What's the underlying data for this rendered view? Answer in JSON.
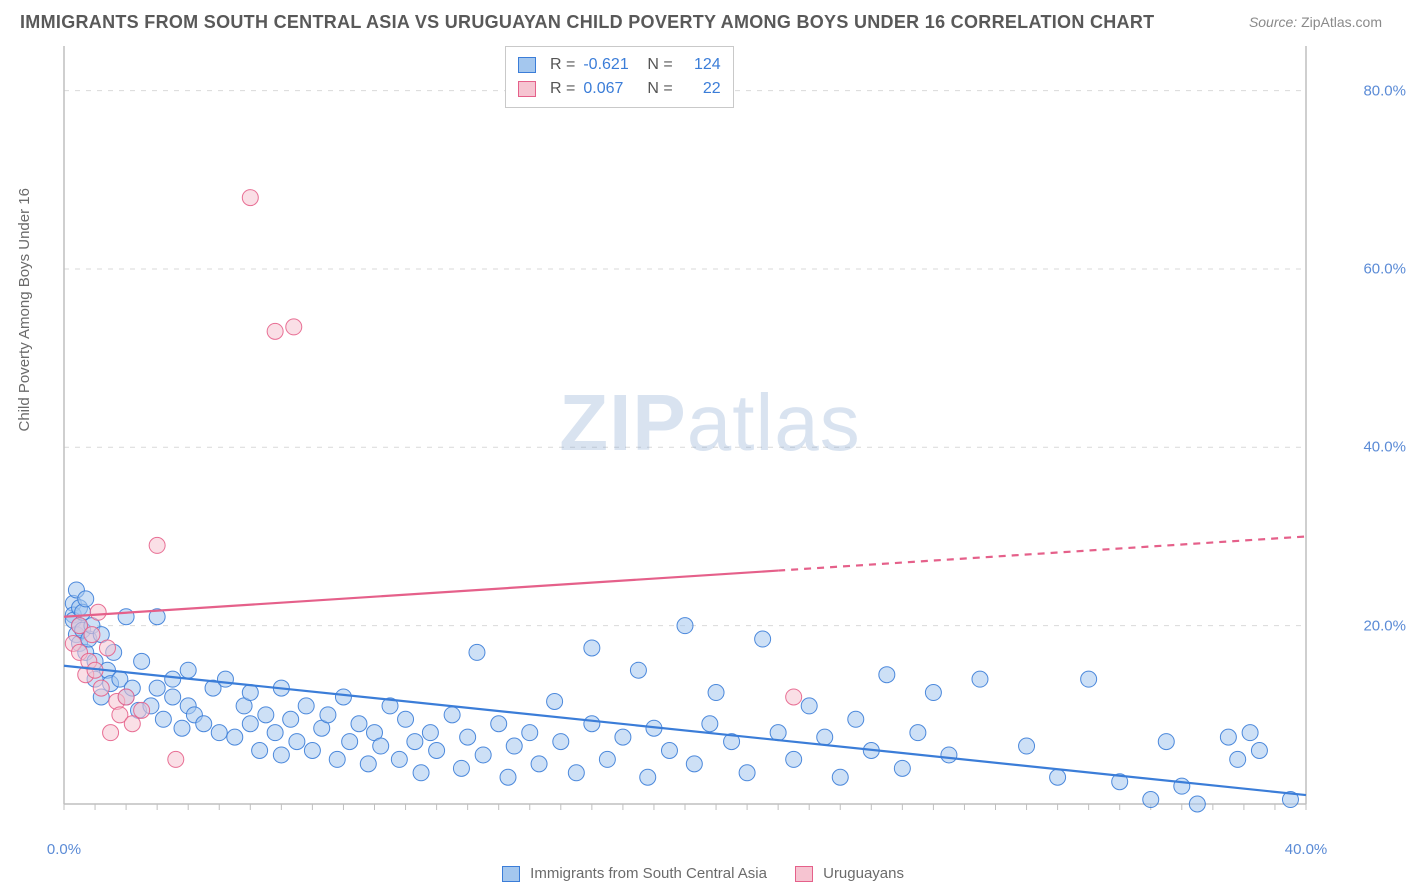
{
  "title": "IMMIGRANTS FROM SOUTH CENTRAL ASIA VS URUGUAYAN CHILD POVERTY AMONG BOYS UNDER 16 CORRELATION CHART",
  "source_label": "Source:",
  "source_value": "ZipAtlas.com",
  "y_axis_label": "Child Poverty Among Boys Under 16",
  "watermark_main": "ZIP",
  "watermark_sub": "atlas",
  "chart": {
    "type": "scatter",
    "background_color": "#ffffff",
    "grid_color": "#d9d9d9",
    "grid_dash": "5,6",
    "axis_color": "#bfbfbf",
    "tick_color": "#5b8bd6",
    "xlim": [
      0,
      40
    ],
    "ylim": [
      0,
      85
    ],
    "x_ticks": [
      0,
      40
    ],
    "x_tick_labels": [
      "0.0%",
      "40.0%"
    ],
    "y_ticks": [
      20,
      40,
      60,
      80
    ],
    "y_tick_labels": [
      "20.0%",
      "40.0%",
      "60.0%",
      "80.0%"
    ],
    "marker_radius": 8,
    "marker_opacity": 0.55,
    "marker_stroke_opacity": 0.9,
    "line_width": 2.2,
    "series": [
      {
        "name": "Immigrants from South Central Asia",
        "color_fill": "#a4c7ee",
        "color_stroke": "#3b7dd8",
        "r_label": "R =",
        "r_value": "-0.621",
        "n_label": "N =",
        "n_value": "124",
        "trend": {
          "x1": 0,
          "y1": 15.5,
          "x2": 40,
          "y2": 1.0,
          "solid_until_x": 40
        },
        "points": [
          [
            0.3,
            22.5
          ],
          [
            0.3,
            21.2
          ],
          [
            0.3,
            20.6
          ],
          [
            0.4,
            19.0
          ],
          [
            0.4,
            24.0
          ],
          [
            0.5,
            22.0
          ],
          [
            0.5,
            20.0
          ],
          [
            0.5,
            18.0
          ],
          [
            0.6,
            21.5
          ],
          [
            0.6,
            19.5
          ],
          [
            0.7,
            23.0
          ],
          [
            0.7,
            17.0
          ],
          [
            0.8,
            18.5
          ],
          [
            0.9,
            20.0
          ],
          [
            1.0,
            16.0
          ],
          [
            1.0,
            14.0
          ],
          [
            1.2,
            19.0
          ],
          [
            1.2,
            12.0
          ],
          [
            1.4,
            15.0
          ],
          [
            1.5,
            13.5
          ],
          [
            1.6,
            17.0
          ],
          [
            1.8,
            14.0
          ],
          [
            2.0,
            12.0
          ],
          [
            2.0,
            21.0
          ],
          [
            2.2,
            13.0
          ],
          [
            2.4,
            10.5
          ],
          [
            2.5,
            16.0
          ],
          [
            2.8,
            11.0
          ],
          [
            3.0,
            21.0
          ],
          [
            3.0,
            13.0
          ],
          [
            3.2,
            9.5
          ],
          [
            3.5,
            14.0
          ],
          [
            3.5,
            12.0
          ],
          [
            3.8,
            8.5
          ],
          [
            4.0,
            15.0
          ],
          [
            4.0,
            11.0
          ],
          [
            4.2,
            10.0
          ],
          [
            4.5,
            9.0
          ],
          [
            4.8,
            13.0
          ],
          [
            5.0,
            8.0
          ],
          [
            5.2,
            14.0
          ],
          [
            5.5,
            7.5
          ],
          [
            5.8,
            11.0
          ],
          [
            6.0,
            9.0
          ],
          [
            6.0,
            12.5
          ],
          [
            6.3,
            6.0
          ],
          [
            6.5,
            10.0
          ],
          [
            6.8,
            8.0
          ],
          [
            7.0,
            13.0
          ],
          [
            7.0,
            5.5
          ],
          [
            7.3,
            9.5
          ],
          [
            7.5,
            7.0
          ],
          [
            7.8,
            11.0
          ],
          [
            8.0,
            6.0
          ],
          [
            8.3,
            8.5
          ],
          [
            8.5,
            10.0
          ],
          [
            8.8,
            5.0
          ],
          [
            9.0,
            12.0
          ],
          [
            9.2,
            7.0
          ],
          [
            9.5,
            9.0
          ],
          [
            9.8,
            4.5
          ],
          [
            10.0,
            8.0
          ],
          [
            10.2,
            6.5
          ],
          [
            10.5,
            11.0
          ],
          [
            10.8,
            5.0
          ],
          [
            11.0,
            9.5
          ],
          [
            11.3,
            7.0
          ],
          [
            11.5,
            3.5
          ],
          [
            11.8,
            8.0
          ],
          [
            12.0,
            6.0
          ],
          [
            12.5,
            10.0
          ],
          [
            12.8,
            4.0
          ],
          [
            13.0,
            7.5
          ],
          [
            13.3,
            17.0
          ],
          [
            13.5,
            5.5
          ],
          [
            14.0,
            9.0
          ],
          [
            14.3,
            3.0
          ],
          [
            14.5,
            6.5
          ],
          [
            15.0,
            8.0
          ],
          [
            15.3,
            4.5
          ],
          [
            15.8,
            11.5
          ],
          [
            16.0,
            7.0
          ],
          [
            16.5,
            3.5
          ],
          [
            17.0,
            9.0
          ],
          [
            17.0,
            17.5
          ],
          [
            17.5,
            5.0
          ],
          [
            18.0,
            7.5
          ],
          [
            18.5,
            15.0
          ],
          [
            18.8,
            3.0
          ],
          [
            19.0,
            8.5
          ],
          [
            19.5,
            6.0
          ],
          [
            20.0,
            20.0
          ],
          [
            20.3,
            4.5
          ],
          [
            20.8,
            9.0
          ],
          [
            21.0,
            12.5
          ],
          [
            21.5,
            7.0
          ],
          [
            22.0,
            3.5
          ],
          [
            22.5,
            18.5
          ],
          [
            23.0,
            8.0
          ],
          [
            23.5,
            5.0
          ],
          [
            24.0,
            11.0
          ],
          [
            24.5,
            7.5
          ],
          [
            25.0,
            3.0
          ],
          [
            25.5,
            9.5
          ],
          [
            26.0,
            6.0
          ],
          [
            26.5,
            14.5
          ],
          [
            27.0,
            4.0
          ],
          [
            27.5,
            8.0
          ],
          [
            28.0,
            12.5
          ],
          [
            28.5,
            5.5
          ],
          [
            29.5,
            14.0
          ],
          [
            31.0,
            6.5
          ],
          [
            32.0,
            3.0
          ],
          [
            33.0,
            14.0
          ],
          [
            34.0,
            2.5
          ],
          [
            35.0,
            0.5
          ],
          [
            35.5,
            7.0
          ],
          [
            36.0,
            2.0
          ],
          [
            36.5,
            0.0
          ],
          [
            37.5,
            7.5
          ],
          [
            37.8,
            5.0
          ],
          [
            38.2,
            8.0
          ],
          [
            38.5,
            6.0
          ],
          [
            39.5,
            0.5
          ]
        ]
      },
      {
        "name": "Uruguayans",
        "color_fill": "#f6c4d1",
        "color_stroke": "#e5608a",
        "r_label": "R =",
        "r_value": "0.067",
        "n_label": "N =",
        "n_value": "22",
        "trend": {
          "x1": 0,
          "y1": 21.0,
          "x2": 40,
          "y2": 30.0,
          "solid_until_x": 23
        },
        "points": [
          [
            0.3,
            18.0
          ],
          [
            0.5,
            17.0
          ],
          [
            0.5,
            20.0
          ],
          [
            0.7,
            14.5
          ],
          [
            0.8,
            16.0
          ],
          [
            0.9,
            19.0
          ],
          [
            1.0,
            15.0
          ],
          [
            1.1,
            21.5
          ],
          [
            1.2,
            13.0
          ],
          [
            1.4,
            17.5
          ],
          [
            1.5,
            8.0
          ],
          [
            1.7,
            11.5
          ],
          [
            1.8,
            10.0
          ],
          [
            2.0,
            12.0
          ],
          [
            2.2,
            9.0
          ],
          [
            2.5,
            10.5
          ],
          [
            3.0,
            29.0
          ],
          [
            3.6,
            5.0
          ],
          [
            6.0,
            68.0
          ],
          [
            6.8,
            53.0
          ],
          [
            7.4,
            53.5
          ],
          [
            23.5,
            12.0
          ]
        ]
      }
    ],
    "bottom_legend": [
      {
        "swatch_fill": "#a4c7ee",
        "swatch_stroke": "#3b7dd8",
        "label": "Immigrants from South Central Asia"
      },
      {
        "swatch_fill": "#f6c4d1",
        "swatch_stroke": "#e5608a",
        "label": "Uruguayans"
      }
    ]
  }
}
